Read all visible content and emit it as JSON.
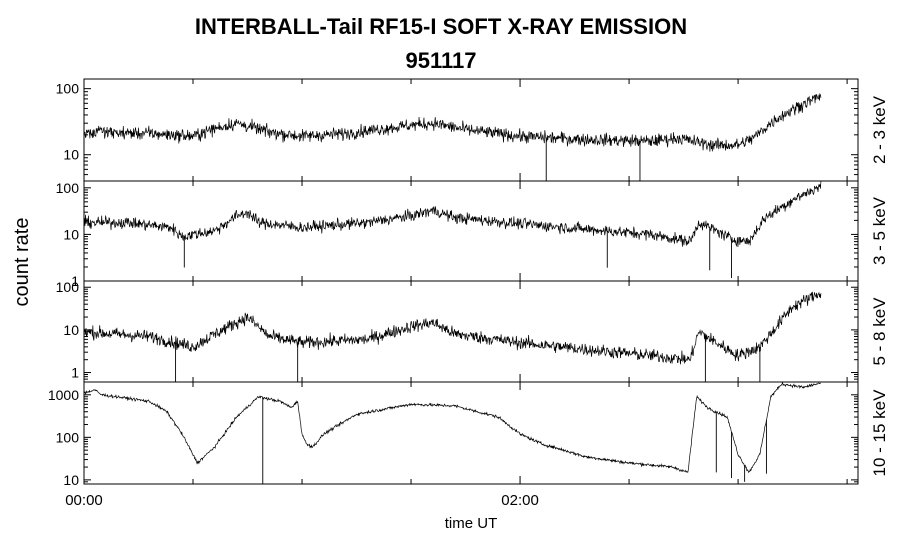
{
  "title": "INTERBALL-Tail RF15-I SOFT X-RAY EMISSION",
  "subtitle": "951117",
  "ylabel": "count rate",
  "xlabel": "time UT",
  "x_ticks": [
    "00:00",
    "02:00"
  ],
  "colors": {
    "line": "#000000",
    "background": "#ffffff"
  },
  "chart_data": {
    "type": "line",
    "title": "INTERBALL-Tail RF15-I SOFT X-RAY EMISSION",
    "subtitle": "951117",
    "xlabel": "time UT",
    "ylabel": "count rate",
    "x_unit": "hours UT",
    "x_range": [
      0,
      3.55
    ],
    "x_major_ticks": [
      {
        "value": 0,
        "label": "00:00"
      },
      {
        "value": 2,
        "label": "02:00"
      }
    ],
    "x_minor_step_hours": 0.5,
    "y_scale": "log",
    "grid": false,
    "panels": [
      {
        "name": "2 - 3 keV",
        "ylim": [
          4,
          140
        ],
        "yticks": [
          10,
          100
        ],
        "ytick_labels": [
          "10",
          "100"
        ],
        "noise": 0.11,
        "dips": [
          [
            2.9,
            2.12
          ],
          [
            2.78,
            2.55
          ]
        ],
        "points": [
          [
            0.0,
            22
          ],
          [
            0.3,
            21
          ],
          [
            0.5,
            19
          ],
          [
            0.6,
            25
          ],
          [
            0.7,
            30
          ],
          [
            0.85,
            22
          ],
          [
            1.0,
            19
          ],
          [
            1.2,
            21
          ],
          [
            1.5,
            28
          ],
          [
            1.6,
            30
          ],
          [
            1.75,
            24
          ],
          [
            2.0,
            19
          ],
          [
            2.3,
            17
          ],
          [
            2.6,
            16
          ],
          [
            2.72,
            18
          ],
          [
            2.88,
            14
          ],
          [
            3.0,
            14
          ],
          [
            3.07,
            18
          ],
          [
            3.17,
            34
          ],
          [
            3.28,
            55
          ],
          [
            3.38,
            78
          ]
        ]
      },
      {
        "name": "3 - 5 keV",
        "ylim": [
          1,
          140
        ],
        "yticks": [
          1,
          10,
          100
        ],
        "ytick_labels": [
          "1",
          "10",
          "100"
        ],
        "noise": 0.14,
        "dips": [
          [
            1.95,
            0.46
          ],
          [
            1.93,
            2.4
          ],
          [
            1.7,
            2.87
          ],
          [
            1.15,
            2.97
          ]
        ],
        "points": [
          [
            0.0,
            18
          ],
          [
            0.2,
            18
          ],
          [
            0.4,
            14
          ],
          [
            0.45,
            9
          ],
          [
            0.6,
            12
          ],
          [
            0.7,
            25
          ],
          [
            0.75,
            30
          ],
          [
            0.8,
            18
          ],
          [
            1.0,
            14
          ],
          [
            1.3,
            18
          ],
          [
            1.5,
            25
          ],
          [
            1.6,
            33
          ],
          [
            1.7,
            23
          ],
          [
            2.0,
            17
          ],
          [
            2.3,
            13
          ],
          [
            2.6,
            10
          ],
          [
            2.78,
            7
          ],
          [
            2.82,
            18
          ],
          [
            2.9,
            12
          ],
          [
            2.97,
            8
          ],
          [
            3.05,
            7
          ],
          [
            3.12,
            22
          ],
          [
            3.25,
            55
          ],
          [
            3.38,
            110
          ]
        ]
      },
      {
        "name": "5 - 8 keV",
        "ylim": [
          0.6,
          140
        ],
        "yticks": [
          1,
          10,
          100
        ],
        "ytick_labels": [
          "1",
          "10",
          "100"
        ],
        "noise": 0.17,
        "dips": [
          [
            0.6,
            0.42
          ],
          [
            0.6,
            0.98
          ],
          [
            0.6,
            2.85
          ],
          [
            0.55,
            3.1
          ]
        ],
        "points": [
          [
            0.0,
            9
          ],
          [
            0.3,
            7
          ],
          [
            0.5,
            4
          ],
          [
            0.6,
            8
          ],
          [
            0.7,
            15
          ],
          [
            0.75,
            20
          ],
          [
            0.85,
            7
          ],
          [
            1.0,
            5
          ],
          [
            1.3,
            6
          ],
          [
            1.5,
            12
          ],
          [
            1.6,
            15
          ],
          [
            1.7,
            8
          ],
          [
            2.0,
            5
          ],
          [
            2.3,
            3.5
          ],
          [
            2.6,
            2.5
          ],
          [
            2.78,
            2
          ],
          [
            2.82,
            9
          ],
          [
            2.9,
            5
          ],
          [
            3.0,
            2.5
          ],
          [
            3.1,
            4
          ],
          [
            3.25,
            35
          ],
          [
            3.38,
            75
          ]
        ]
      },
      {
        "name": "10 - 15 keV",
        "ylim": [
          8,
          2000
        ],
        "yticks": [
          10,
          100,
          1000
        ],
        "ytick_labels": [
          "10",
          "100",
          "1000"
        ],
        "noise": 0.04,
        "dips": [
          [
            8,
            0.82
          ],
          [
            15,
            2.9
          ],
          [
            11,
            2.97
          ],
          [
            9,
            3.03
          ],
          [
            14,
            3.13
          ]
        ],
        "points": [
          [
            0.0,
            1100
          ],
          [
            0.05,
            1300
          ],
          [
            0.08,
            1000
          ],
          [
            0.15,
            900
          ],
          [
            0.3,
            700
          ],
          [
            0.38,
            400
          ],
          [
            0.45,
            120
          ],
          [
            0.52,
            25
          ],
          [
            0.6,
            60
          ],
          [
            0.7,
            300
          ],
          [
            0.8,
            900
          ],
          [
            0.9,
            700
          ],
          [
            0.95,
            500
          ],
          [
            0.98,
            700
          ],
          [
            1.0,
            120
          ],
          [
            1.02,
            70
          ],
          [
            1.05,
            60
          ],
          [
            1.1,
            120
          ],
          [
            1.25,
            350
          ],
          [
            1.5,
            600
          ],
          [
            1.7,
            550
          ],
          [
            1.9,
            300
          ],
          [
            2.0,
            120
          ],
          [
            2.1,
            70
          ],
          [
            2.2,
            50
          ],
          [
            2.3,
            35
          ],
          [
            2.5,
            25
          ],
          [
            2.7,
            20
          ],
          [
            2.77,
            15
          ],
          [
            2.81,
            900
          ],
          [
            2.86,
            500
          ],
          [
            2.95,
            300
          ],
          [
            3.0,
            40
          ],
          [
            3.05,
            15
          ],
          [
            3.1,
            40
          ],
          [
            3.15,
            900
          ],
          [
            3.2,
            1800
          ],
          [
            3.3,
            1500
          ],
          [
            3.38,
            1900
          ]
        ]
      }
    ]
  }
}
